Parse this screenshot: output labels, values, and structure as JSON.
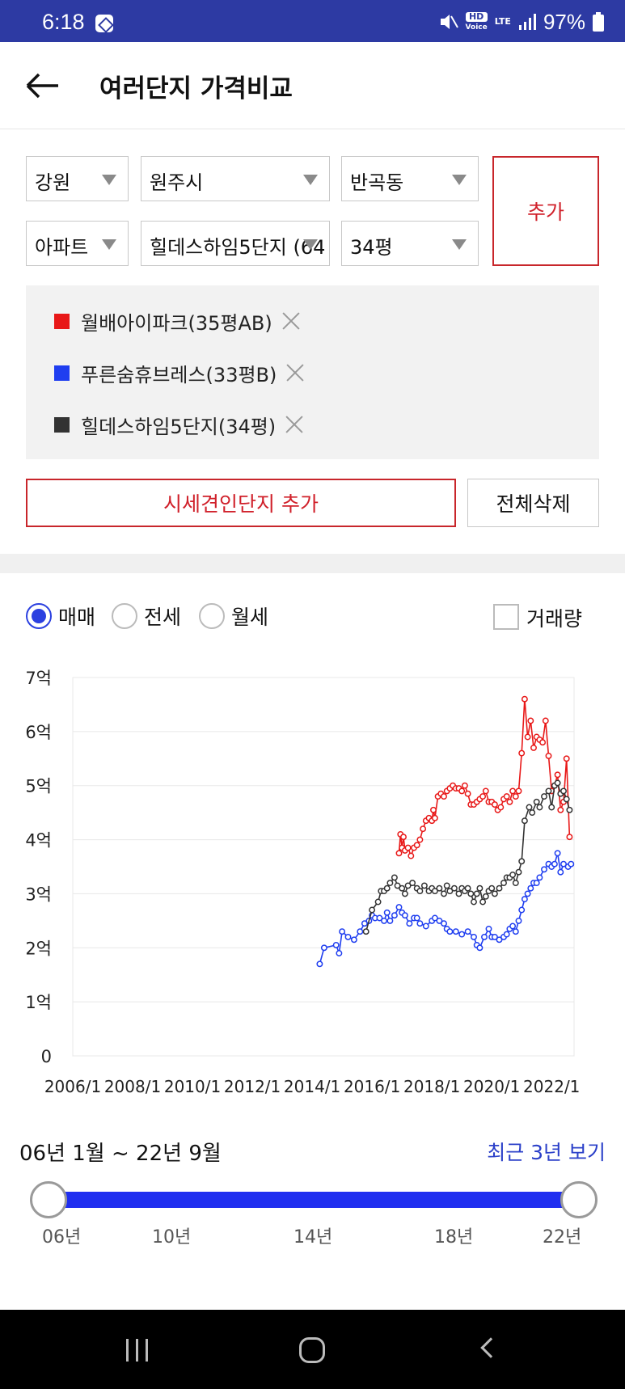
{
  "status": {
    "time": "6:18",
    "battery": "97%",
    "hd": "HD",
    "voice": "Voice",
    "lte": "LTE"
  },
  "header": {
    "title": "여러단지 가격비교"
  },
  "filters": {
    "region": "강원",
    "city": "원주시",
    "dong": "반곡동",
    "type": "아파트",
    "complex": "힐데스하임5단지 (64",
    "size": "34평",
    "add_label": "추가"
  },
  "selected": [
    {
      "label": "월배아이파크(35평AB)",
      "color": "#e81818"
    },
    {
      "label": "푸른숨휴브레스(33평B)",
      "color": "#1f3ef0"
    },
    {
      "label": "힐데스하임5단지(34평)",
      "color": "#333333"
    }
  ],
  "actions": {
    "add_market": "시세견인단지 추가",
    "delete_all": "전체삭제"
  },
  "tabs": {
    "sale": "매매",
    "jeonse": "전세",
    "monthly": "월세",
    "volume": "거래량",
    "selected": "매매"
  },
  "chart_data": {
    "type": "line",
    "x_unit": "year",
    "xlim": [
      2006,
      2022.75
    ],
    "ylim": [
      0,
      7
    ],
    "y_ticks": [
      "0",
      "1억",
      "2억",
      "3억",
      "4억",
      "5억",
      "6억",
      "7억"
    ],
    "x_ticks": [
      "2006/1",
      "2008/1",
      "2010/1",
      "2012/1",
      "2014/1",
      "2016/1",
      "2018/1",
      "2020/1",
      "2022/1"
    ],
    "grid": true,
    "series": [
      {
        "name": "월배아이파크(35평AB)",
        "color": "#e81818",
        "points": [
          [
            2016.9,
            3.75
          ],
          [
            2016.95,
            4.1
          ],
          [
            2017.0,
            3.85
          ],
          [
            2017.05,
            4.05
          ],
          [
            2017.1,
            3.8
          ],
          [
            2017.2,
            3.85
          ],
          [
            2017.3,
            3.7
          ],
          [
            2017.4,
            3.85
          ],
          [
            2017.5,
            3.9
          ],
          [
            2017.6,
            4.0
          ],
          [
            2017.7,
            4.2
          ],
          [
            2017.8,
            4.35
          ],
          [
            2017.9,
            4.4
          ],
          [
            2018.0,
            4.35
          ],
          [
            2018.05,
            4.55
          ],
          [
            2018.1,
            4.4
          ],
          [
            2018.2,
            4.8
          ],
          [
            2018.3,
            4.85
          ],
          [
            2018.4,
            4.8
          ],
          [
            2018.5,
            4.9
          ],
          [
            2018.6,
            4.95
          ],
          [
            2018.7,
            5.0
          ],
          [
            2018.8,
            4.95
          ],
          [
            2018.9,
            4.95
          ],
          [
            2019.0,
            4.9
          ],
          [
            2019.1,
            5.0
          ],
          [
            2019.2,
            4.85
          ],
          [
            2019.3,
            4.65
          ],
          [
            2019.4,
            4.65
          ],
          [
            2019.5,
            4.7
          ],
          [
            2019.6,
            4.75
          ],
          [
            2019.7,
            4.8
          ],
          [
            2019.8,
            4.9
          ],
          [
            2019.9,
            4.7
          ],
          [
            2020.0,
            4.7
          ],
          [
            2020.1,
            4.65
          ],
          [
            2020.2,
            4.55
          ],
          [
            2020.3,
            4.6
          ],
          [
            2020.4,
            4.75
          ],
          [
            2020.5,
            4.8
          ],
          [
            2020.6,
            4.7
          ],
          [
            2020.7,
            4.9
          ],
          [
            2020.8,
            4.8
          ],
          [
            2020.9,
            4.9
          ],
          [
            2021.0,
            5.6
          ],
          [
            2021.1,
            6.6
          ],
          [
            2021.2,
            5.9
          ],
          [
            2021.3,
            6.2
          ],
          [
            2021.4,
            5.7
          ],
          [
            2021.5,
            5.9
          ],
          [
            2021.6,
            5.85
          ],
          [
            2021.7,
            5.8
          ],
          [
            2021.8,
            6.2
          ],
          [
            2021.9,
            5.55
          ],
          [
            2022.0,
            4.9
          ],
          [
            2022.1,
            5.0
          ],
          [
            2022.2,
            5.2
          ],
          [
            2022.3,
            4.55
          ],
          [
            2022.4,
            4.7
          ],
          [
            2022.5,
            5.5
          ],
          [
            2022.6,
            4.05
          ]
        ]
      },
      {
        "name": "푸른숨휴브레스(33평B)",
        "color": "#1f3ef0",
        "points": [
          [
            2014.25,
            1.7
          ],
          [
            2014.4,
            2.0
          ],
          [
            2014.8,
            2.05
          ],
          [
            2014.9,
            1.9
          ],
          [
            2015.0,
            2.3
          ],
          [
            2015.2,
            2.2
          ],
          [
            2015.4,
            2.15
          ],
          [
            2015.6,
            2.3
          ],
          [
            2015.75,
            2.45
          ],
          [
            2015.9,
            2.5
          ],
          [
            2016.0,
            2.6
          ],
          [
            2016.1,
            2.55
          ],
          [
            2016.25,
            2.55
          ],
          [
            2016.4,
            2.5
          ],
          [
            2016.5,
            2.65
          ],
          [
            2016.6,
            2.5
          ],
          [
            2016.75,
            2.6
          ],
          [
            2016.9,
            2.75
          ],
          [
            2017.0,
            2.65
          ],
          [
            2017.1,
            2.6
          ],
          [
            2017.25,
            2.45
          ],
          [
            2017.4,
            2.55
          ],
          [
            2017.5,
            2.55
          ],
          [
            2017.6,
            2.45
          ],
          [
            2017.8,
            2.4
          ],
          [
            2018.0,
            2.5
          ],
          [
            2018.1,
            2.55
          ],
          [
            2018.25,
            2.5
          ],
          [
            2018.4,
            2.45
          ],
          [
            2018.5,
            2.35
          ],
          [
            2018.6,
            2.3
          ],
          [
            2018.8,
            2.3
          ],
          [
            2019.0,
            2.25
          ],
          [
            2019.2,
            2.3
          ],
          [
            2019.4,
            2.2
          ],
          [
            2019.5,
            2.05
          ],
          [
            2019.6,
            2.0
          ],
          [
            2019.75,
            2.2
          ],
          [
            2019.9,
            2.35
          ],
          [
            2020.0,
            2.2
          ],
          [
            2020.1,
            2.2
          ],
          [
            2020.25,
            2.15
          ],
          [
            2020.4,
            2.2
          ],
          [
            2020.5,
            2.25
          ],
          [
            2020.6,
            2.35
          ],
          [
            2020.7,
            2.4
          ],
          [
            2020.8,
            2.3
          ],
          [
            2020.9,
            2.5
          ],
          [
            2021.0,
            2.7
          ],
          [
            2021.1,
            2.9
          ],
          [
            2021.2,
            3.0
          ],
          [
            2021.3,
            3.1
          ],
          [
            2021.4,
            3.2
          ],
          [
            2021.5,
            3.2
          ],
          [
            2021.6,
            3.3
          ],
          [
            2021.75,
            3.45
          ],
          [
            2021.9,
            3.55
          ],
          [
            2022.0,
            3.5
          ],
          [
            2022.1,
            3.55
          ],
          [
            2022.2,
            3.75
          ],
          [
            2022.3,
            3.4
          ],
          [
            2022.4,
            3.55
          ],
          [
            2022.55,
            3.5
          ],
          [
            2022.65,
            3.55
          ]
        ]
      },
      {
        "name": "힐데스하임5단지(34평)",
        "color": "#333333",
        "points": [
          [
            2015.8,
            2.3
          ],
          [
            2016.0,
            2.7
          ],
          [
            2016.2,
            2.85
          ],
          [
            2016.3,
            3.05
          ],
          [
            2016.4,
            3.05
          ],
          [
            2016.5,
            3.1
          ],
          [
            2016.6,
            3.2
          ],
          [
            2016.75,
            3.3
          ],
          [
            2016.85,
            3.15
          ],
          [
            2017.0,
            3.1
          ],
          [
            2017.1,
            3.0
          ],
          [
            2017.2,
            3.15
          ],
          [
            2017.35,
            3.2
          ],
          [
            2017.5,
            3.1
          ],
          [
            2017.6,
            3.05
          ],
          [
            2017.75,
            3.15
          ],
          [
            2017.9,
            3.05
          ],
          [
            2018.0,
            3.1
          ],
          [
            2018.1,
            3.05
          ],
          [
            2018.25,
            3.1
          ],
          [
            2018.4,
            3.0
          ],
          [
            2018.5,
            3.15
          ],
          [
            2018.6,
            3.05
          ],
          [
            2018.75,
            3.1
          ],
          [
            2018.9,
            3.0
          ],
          [
            2019.0,
            3.1
          ],
          [
            2019.1,
            3.05
          ],
          [
            2019.2,
            3.1
          ],
          [
            2019.3,
            3.0
          ],
          [
            2019.4,
            2.85
          ],
          [
            2019.5,
            3.0
          ],
          [
            2019.6,
            3.1
          ],
          [
            2019.7,
            2.85
          ],
          [
            2019.8,
            2.95
          ],
          [
            2019.9,
            3.05
          ],
          [
            2020.0,
            3.1
          ],
          [
            2020.1,
            3.0
          ],
          [
            2020.25,
            3.1
          ],
          [
            2020.4,
            3.2
          ],
          [
            2020.5,
            3.3
          ],
          [
            2020.6,
            3.3
          ],
          [
            2020.7,
            3.35
          ],
          [
            2020.8,
            3.2
          ],
          [
            2020.9,
            3.4
          ],
          [
            2021.0,
            3.6
          ],
          [
            2021.1,
            4.35
          ],
          [
            2021.25,
            4.6
          ],
          [
            2021.35,
            4.5
          ],
          [
            2021.5,
            4.7
          ],
          [
            2021.6,
            4.6
          ],
          [
            2021.75,
            4.8
          ],
          [
            2021.9,
            4.9
          ],
          [
            2022.0,
            4.6
          ],
          [
            2022.1,
            5.0
          ],
          [
            2022.2,
            5.05
          ],
          [
            2022.3,
            4.85
          ],
          [
            2022.4,
            4.9
          ],
          [
            2022.5,
            4.75
          ],
          [
            2022.6,
            4.55
          ]
        ]
      }
    ]
  },
  "range": {
    "label": "06년 1월 ~ 22년 9월",
    "recent": "최근 3년 보기",
    "ticks": [
      "06년",
      "10년",
      "14년",
      "18년",
      "22년"
    ]
  }
}
